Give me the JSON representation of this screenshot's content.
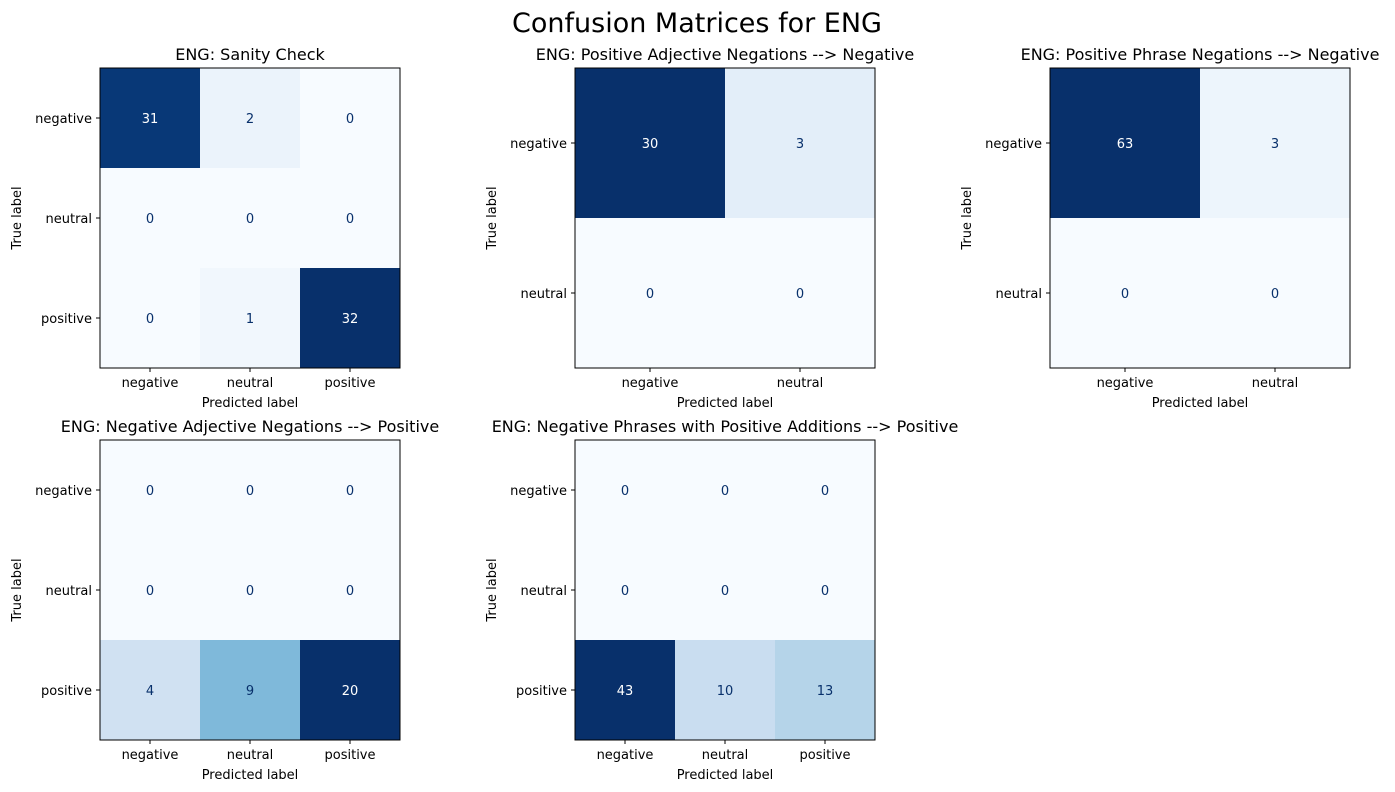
{
  "figure_title": "Confusion Matrices for ENG",
  "chart_data": [
    {
      "type": "heatmap",
      "title": "ENG: Sanity Check",
      "xlabel": "Predicted label",
      "ylabel": "True label",
      "x_categories": [
        "negative",
        "neutral",
        "positive"
      ],
      "y_categories": [
        "negative",
        "neutral",
        "positive"
      ],
      "values": [
        [
          31,
          2,
          0
        ],
        [
          0,
          0,
          0
        ],
        [
          0,
          1,
          32
        ]
      ],
      "colormap": "Blues"
    },
    {
      "type": "heatmap",
      "title": "ENG: Positive Adjective Negations --> Negative",
      "xlabel": "Predicted label",
      "ylabel": "True label",
      "x_categories": [
        "negative",
        "neutral"
      ],
      "y_categories": [
        "negative",
        "neutral"
      ],
      "values": [
        [
          30,
          3
        ],
        [
          0,
          0
        ]
      ],
      "colormap": "Blues"
    },
    {
      "type": "heatmap",
      "title": "ENG: Positive Phrase Negations --> Negative",
      "xlabel": "Predicted label",
      "ylabel": "True label",
      "x_categories": [
        "negative",
        "neutral"
      ],
      "y_categories": [
        "negative",
        "neutral"
      ],
      "values": [
        [
          63,
          3
        ],
        [
          0,
          0
        ]
      ],
      "colormap": "Blues"
    },
    {
      "type": "heatmap",
      "title": "ENG: Negative Adjective Negations --> Positive",
      "xlabel": "Predicted label",
      "ylabel": "True label",
      "x_categories": [
        "negative",
        "neutral",
        "positive"
      ],
      "y_categories": [
        "negative",
        "neutral",
        "positive"
      ],
      "values": [
        [
          0,
          0,
          0
        ],
        [
          0,
          0,
          0
        ],
        [
          4,
          9,
          20
        ]
      ],
      "colormap": "Blues"
    },
    {
      "type": "heatmap",
      "title": "ENG: Negative Phrases with Positive Additions --> Positive",
      "xlabel": "Predicted label",
      "ylabel": "True label",
      "x_categories": [
        "negative",
        "neutral",
        "positive"
      ],
      "y_categories": [
        "negative",
        "neutral",
        "positive"
      ],
      "values": [
        [
          0,
          0,
          0
        ],
        [
          0,
          0,
          0
        ],
        [
          43,
          10,
          13
        ]
      ],
      "colormap": "Blues"
    }
  ]
}
